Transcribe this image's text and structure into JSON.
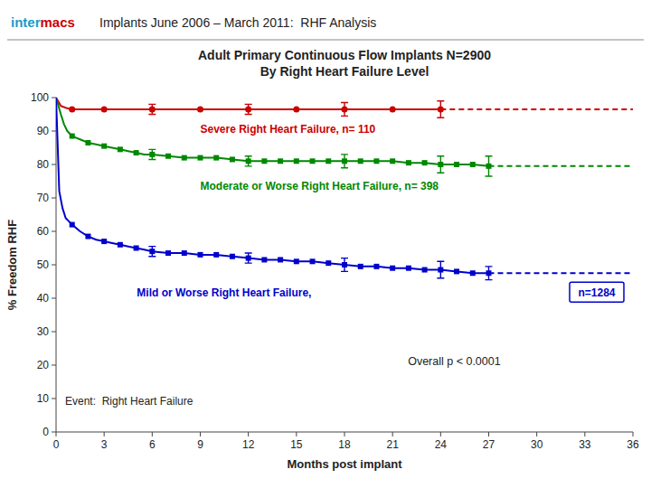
{
  "chart_data": {
    "type": "line",
    "title": "Adult Primary Continuous Flow Implants N=2900\nBy Right Heart Failure Level",
    "subtitle": "Implants June 2006 – March 2011:  RHF Analysis",
    "x_label": "Months post implant",
    "y_label": "% Freedom RHF",
    "xlim": [
      0,
      36
    ],
    "ylim": [
      0,
      100
    ],
    "xticks": [
      0,
      3,
      6,
      9,
      12,
      15,
      18,
      21,
      24,
      27,
      30,
      33,
      36
    ],
    "yticks": [
      0,
      10,
      20,
      30,
      40,
      50,
      60,
      70,
      80,
      90,
      100
    ],
    "grid": false,
    "annotations": [
      {
        "text": "inter",
        "color": "#1a9bc9"
      },
      {
        "text": "macs",
        "color": "#CC0000"
      },
      {
        "text": "Overall p < 0.0001"
      },
      {
        "text": "Event:  Right Heart Failure"
      },
      {
        "text": "n=1284",
        "color": "#0000CC"
      }
    ],
    "series": [
      {
        "name": "Severe Right Heart Failure, n= 110",
        "type": "line",
        "line_style": "solid",
        "color": "#CC0000",
        "x": [
          0,
          0.3,
          0.7,
          1,
          1.5,
          2,
          3,
          4,
          5,
          6,
          7,
          8,
          9,
          10,
          11,
          12,
          13,
          14,
          15,
          16,
          17,
          18,
          19,
          20,
          21,
          22,
          23,
          24
        ],
        "values": [
          100,
          97.5,
          96.8,
          96.5,
          96.5,
          96.5,
          96.5,
          96.5,
          96.5,
          96.5,
          96.5,
          96.5,
          96.5,
          96.5,
          96.5,
          96.5,
          96.5,
          96.5,
          96.5,
          96.5,
          96.5,
          96.5,
          96.5,
          96.5,
          96.5,
          96.5,
          96.5,
          96.5
        ]
      },
      {
        "type": "line",
        "line_style": "dashed",
        "color": "#CC0000",
        "x": [
          24,
          36
        ],
        "values": [
          96.5,
          96.5
        ]
      },
      {
        "type": "scatter",
        "marker": "circle",
        "color": "#CC0000",
        "x": [
          1,
          3,
          6,
          9,
          12,
          15,
          18,
          21,
          24
        ],
        "values": [
          96.5,
          96.5,
          96.5,
          96.5,
          96.5,
          96.5,
          96.5,
          96.5,
          96.5
        ]
      },
      {
        "type": "errorbar",
        "color": "#CC0000",
        "x": [
          6,
          12,
          18,
          24
        ],
        "values": [
          96.5,
          96.5,
          96.5,
          96.5
        ],
        "errors": [
          1.5,
          1.5,
          2.0,
          2.5
        ]
      },
      {
        "name": "Moderate or Worse Right Heart Failure, n= 398",
        "type": "line",
        "line_style": "solid",
        "color": "#008800",
        "x": [
          0,
          0.3,
          0.5,
          0.7,
          1,
          1.5,
          2,
          2.5,
          3,
          3.5,
          4,
          4.5,
          5,
          5.5,
          6,
          7,
          8,
          9,
          10,
          11,
          12,
          13,
          14,
          15,
          16,
          17,
          18,
          19,
          20,
          21,
          22,
          23,
          24,
          25,
          26,
          27
        ],
        "values": [
          100,
          95,
          92,
          90,
          88.5,
          87.5,
          86.5,
          86,
          85.5,
          85,
          84.5,
          84,
          83.5,
          83,
          83,
          82.5,
          82,
          82,
          82,
          81.5,
          81,
          81,
          81,
          81,
          81,
          81,
          81,
          81,
          81,
          81,
          80.5,
          80.5,
          80,
          80,
          80,
          79.5
        ]
      },
      {
        "type": "line",
        "line_style": "dashed",
        "color": "#008800",
        "x": [
          27,
          36
        ],
        "values": [
          79.5,
          79.5
        ]
      },
      {
        "type": "scatter",
        "marker": "square",
        "color": "#008800",
        "x": [
          1,
          2,
          3,
          4,
          5,
          6,
          7,
          8,
          9,
          10,
          11,
          12,
          13,
          14,
          15,
          16,
          17,
          18,
          19,
          20,
          21,
          22,
          23,
          24,
          25,
          26,
          27
        ],
        "values": [
          88.5,
          86.5,
          85.5,
          84.5,
          83.5,
          83,
          82.5,
          82,
          82,
          82,
          81.5,
          81,
          81,
          81,
          81,
          81,
          81,
          81,
          81,
          81,
          81,
          80.5,
          80.5,
          80,
          80,
          80,
          79.5
        ]
      },
      {
        "type": "errorbar",
        "color": "#008800",
        "x": [
          6,
          12,
          18,
          24,
          27
        ],
        "values": [
          83,
          81,
          81,
          80,
          79.5
        ],
        "errors": [
          1.5,
          1.5,
          2.0,
          2.5,
          3.0
        ]
      },
      {
        "name": "Mild or Worse Right Heart Failure,",
        "type": "line",
        "line_style": "solid",
        "color": "#0000CC",
        "x": [
          0,
          0.2,
          0.4,
          0.6,
          0.8,
          1,
          1.5,
          2,
          2.5,
          3,
          3.5,
          4,
          4.5,
          5,
          5.5,
          6,
          7,
          8,
          9,
          10,
          11,
          12,
          13,
          14,
          15,
          16,
          17,
          18,
          19,
          20,
          21,
          22,
          23,
          24,
          25,
          26,
          27
        ],
        "values": [
          100,
          72,
          67,
          64,
          63,
          62,
          60,
          58.5,
          57.5,
          57,
          56.5,
          56,
          55.5,
          55,
          54.5,
          54,
          53.5,
          53.5,
          53,
          53,
          52.5,
          52,
          51.5,
          51.5,
          51,
          51,
          50.5,
          50,
          49.5,
          49.5,
          49,
          49,
          48.5,
          48.5,
          48,
          47.5,
          47.5
        ]
      },
      {
        "type": "line",
        "line_style": "dashed",
        "color": "#0000CC",
        "x": [
          27,
          36
        ],
        "values": [
          47.5,
          47.5
        ]
      },
      {
        "type": "scatter",
        "marker": "square",
        "color": "#0000CC",
        "x": [
          1,
          2,
          3,
          4,
          5,
          6,
          7,
          8,
          9,
          10,
          11,
          12,
          13,
          14,
          15,
          16,
          17,
          18,
          19,
          20,
          21,
          22,
          23,
          24,
          25,
          26,
          27
        ],
        "values": [
          62,
          58.5,
          57,
          56,
          55,
          54,
          53.5,
          53.5,
          53,
          53,
          52.5,
          52,
          51.5,
          51.5,
          51,
          51,
          50.5,
          50,
          49.5,
          49.5,
          49,
          49,
          48.5,
          48.5,
          48,
          47.5,
          47.5
        ]
      },
      {
        "type": "errorbar",
        "color": "#0000CC",
        "x": [
          6,
          12,
          18,
          24,
          27
        ],
        "values": [
          54,
          52,
          50,
          48.5,
          47.5
        ],
        "errors": [
          1.5,
          1.5,
          2.0,
          2.5,
          2.0
        ]
      }
    ]
  }
}
